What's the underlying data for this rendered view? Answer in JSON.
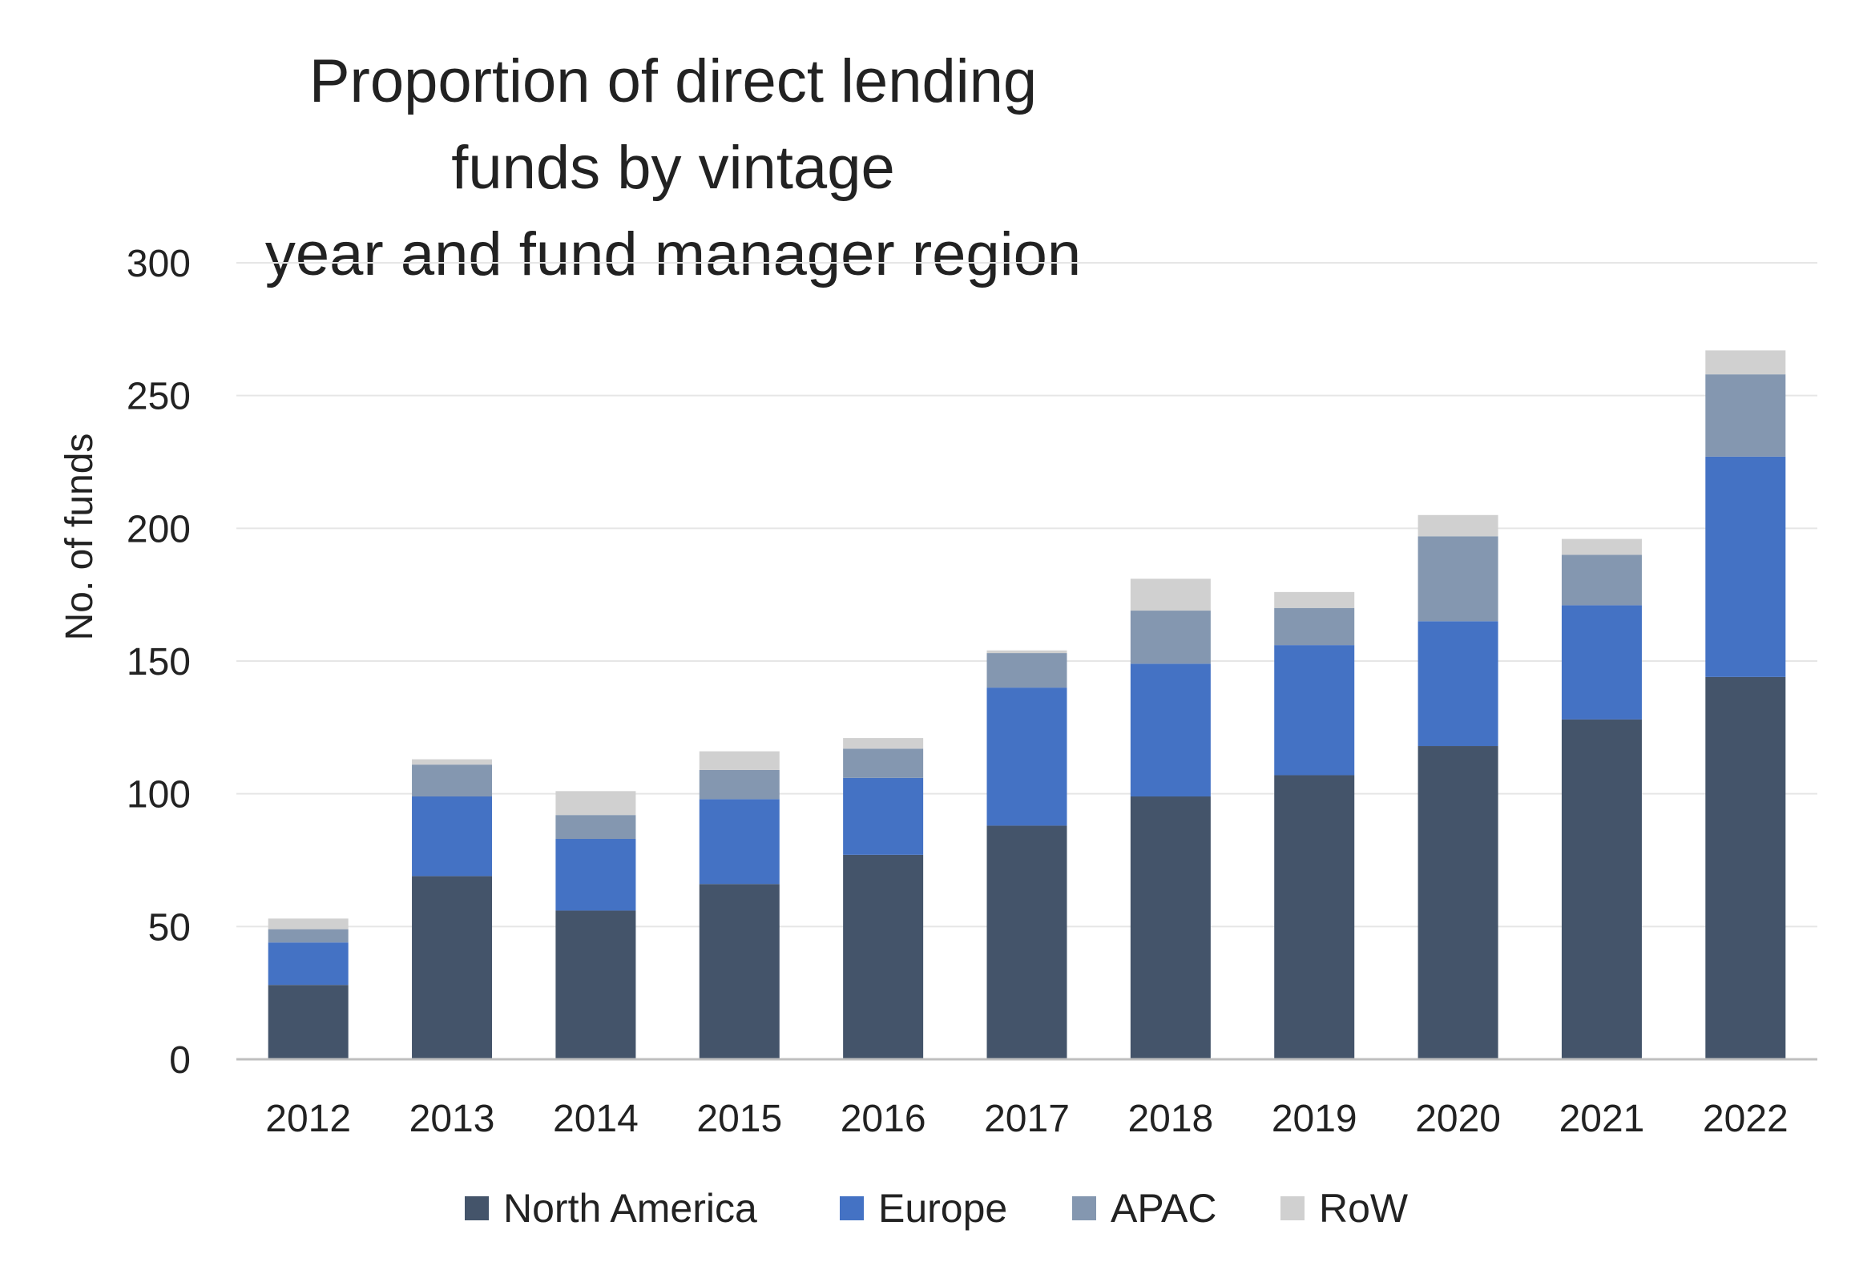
{
  "chart_data": {
    "type": "bar",
    "stacked": true,
    "title": "Proportion of direct lending funds by vintage year and fund manager region",
    "title_lines": [
      "Proportion of direct lending funds by vintage",
      "year and fund manager region"
    ],
    "xlabel": "",
    "ylabel": "No. of funds",
    "ylim": [
      0,
      300
    ],
    "yticks": [
      0,
      50,
      100,
      150,
      200,
      250,
      300
    ],
    "grid": true,
    "legend_position": "bottom",
    "categories": [
      "2012",
      "2013",
      "2014",
      "2015",
      "2016",
      "2017",
      "2018",
      "2019",
      "2020",
      "2021",
      "2022"
    ],
    "series": [
      {
        "name": "North America",
        "color": "#44546A",
        "values": [
          28,
          69,
          56,
          66,
          77,
          88,
          99,
          107,
          118,
          128,
          144
        ]
      },
      {
        "name": "Europe",
        "color": "#4472C4",
        "values": [
          16,
          30,
          27,
          32,
          29,
          52,
          50,
          49,
          47,
          43,
          83
        ]
      },
      {
        "name": "APAC",
        "color": "#8497B0",
        "values": [
          5,
          12,
          9,
          11,
          11,
          13,
          20,
          14,
          32,
          19,
          31
        ]
      },
      {
        "name": "RoW",
        "color": "#D0D0D0",
        "values": [
          4,
          2,
          9,
          7,
          4,
          1,
          12,
          6,
          8,
          6,
          9
        ]
      }
    ]
  }
}
